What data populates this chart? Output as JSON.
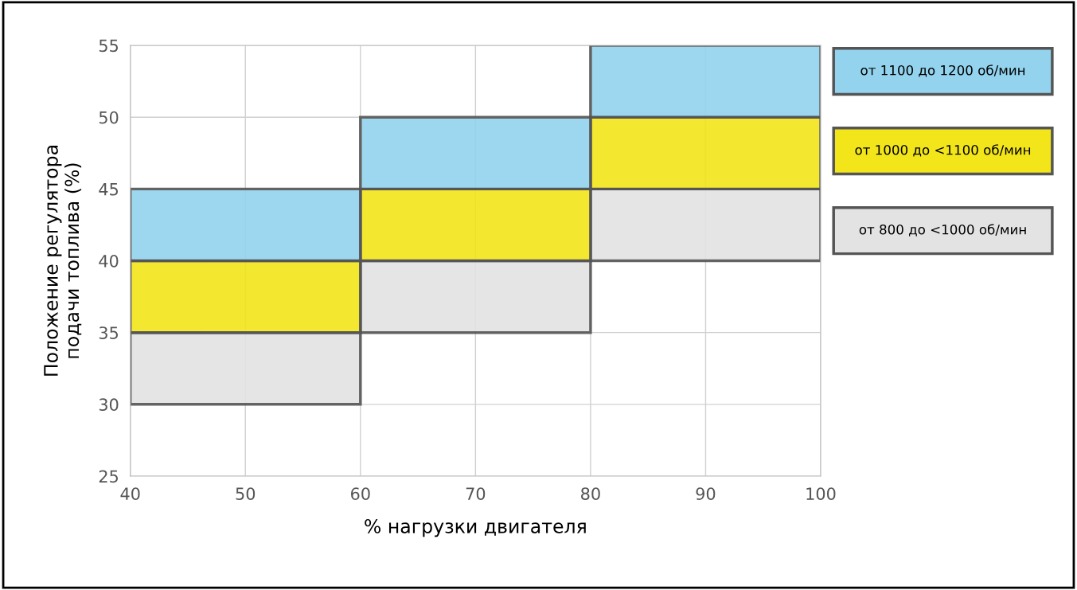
{
  "chart_data": {
    "type": "bar",
    "xlabel": "% нагрузки двигателя",
    "ylabel": "Положение регулятора\nподачи топлива (%)",
    "x": [
      50,
      70,
      90
    ],
    "series": [
      {
        "name": "от 800 до <1000 об/мин",
        "color": "#e3e3e3",
        "base": [
          30,
          35,
          40
        ],
        "values": [
          5,
          5,
          5
        ]
      },
      {
        "name": "от 1000 до <1100 об/мин",
        "color": "#f2e51a",
        "base": [
          35,
          40,
          45
        ],
        "values": [
          5,
          5,
          5
        ]
      },
      {
        "name": "от 1100 до 1200 об/мин",
        "color": "#93d3ee",
        "base": [
          40,
          45,
          50
        ],
        "values": [
          5,
          5,
          5
        ]
      }
    ],
    "xlim": [
      40,
      100
    ],
    "xticks": [
      40,
      50,
      60,
      70,
      80,
      90,
      100
    ],
    "ylim": [
      25,
      55
    ],
    "yticks": [
      25,
      30,
      35,
      40,
      45,
      50,
      55
    ],
    "grid": true,
    "legend": "right"
  }
}
